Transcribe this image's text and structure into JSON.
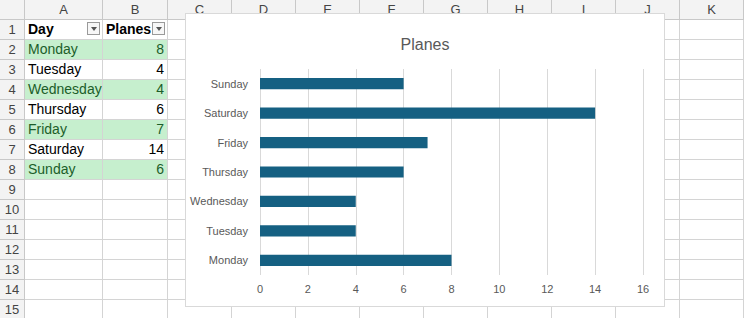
{
  "spreadsheet": {
    "columns": [
      "A",
      "B",
      "C",
      "D",
      "E",
      "F",
      "G",
      "H",
      "I",
      "J",
      "K"
    ],
    "rows": [
      1,
      2,
      3,
      4,
      5,
      6,
      7,
      8,
      9,
      10,
      11,
      12,
      13,
      14,
      15
    ],
    "table": {
      "header": [
        "Day",
        "Planes"
      ],
      "rows": [
        [
          "Monday",
          8
        ],
        [
          "Tuesday",
          4
        ],
        [
          "Wednesday",
          4
        ],
        [
          "Thursday",
          6
        ],
        [
          "Friday",
          7
        ],
        [
          "Saturday",
          14
        ],
        [
          "Sunday",
          6
        ]
      ]
    }
  },
  "chart_data": {
    "type": "bar",
    "title": "Planes",
    "orientation": "horizontal",
    "categories": [
      "Monday",
      "Tuesday",
      "Wednesday",
      "Thursday",
      "Friday",
      "Saturday",
      "Sunday"
    ],
    "values": [
      8,
      4,
      4,
      6,
      7,
      14,
      6
    ],
    "color": "#156082",
    "xlim": [
      0,
      16
    ],
    "xticks": [
      0,
      2,
      4,
      6,
      8,
      10,
      12,
      14,
      16
    ],
    "grid": true
  }
}
